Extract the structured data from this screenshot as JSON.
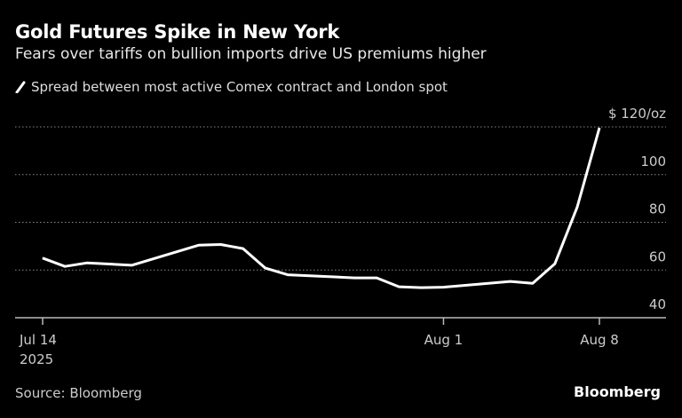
{
  "title": "Gold Futures Spike in New York",
  "subtitle": "Fears over tariffs on bullion imports drive US premiums higher",
  "source": "Source: Bloomberg",
  "brand": "Bloomberg",
  "chart_data": {
    "type": "line",
    "series": [
      {
        "name": "Spread between most active Comex contract and London spot",
        "color": "#ffffff",
        "points": [
          [
            "2025-07-14",
            65
          ],
          [
            "2025-07-15",
            61.5
          ],
          [
            "2025-07-16",
            63
          ],
          [
            "2025-07-17",
            62.5
          ],
          [
            "2025-07-18",
            62
          ],
          [
            "2025-07-21",
            70.4
          ],
          [
            "2025-07-22",
            70.7
          ],
          [
            "2025-07-23",
            69
          ],
          [
            "2025-07-24",
            60.8
          ],
          [
            "2025-07-25",
            58
          ],
          [
            "2025-07-28",
            56.7
          ],
          [
            "2025-07-29",
            56.7
          ],
          [
            "2025-07-30",
            53
          ],
          [
            "2025-07-31",
            52.6
          ],
          [
            "2025-08-01",
            52.8
          ],
          [
            "2025-08-04",
            55.2
          ],
          [
            "2025-08-05",
            54.4
          ],
          [
            "2025-08-06",
            62.6
          ],
          [
            "2025-08-07",
            86.3
          ],
          [
            "2025-08-08",
            119.6
          ]
        ]
      }
    ],
    "x_ticks": [
      {
        "date": "2025-07-14",
        "label": "Jul 14",
        "sublabel": "2025"
      },
      {
        "date": "2025-08-01",
        "label": "Aug 1"
      },
      {
        "date": "2025-08-08",
        "label": "Aug 8"
      }
    ],
    "y_ticks": [
      {
        "value": 40,
        "label": "40"
      },
      {
        "value": 60,
        "label": "60"
      },
      {
        "value": 80,
        "label": "80"
      },
      {
        "value": 100,
        "label": "100"
      },
      {
        "value": 120,
        "label": "$ 120/oz"
      }
    ],
    "ylim": [
      40,
      120
    ],
    "xlim": [
      "2025-07-14",
      "2025-08-08"
    ],
    "grid": true,
    "y_axis_side": "right",
    "legend_position": "top-left"
  }
}
